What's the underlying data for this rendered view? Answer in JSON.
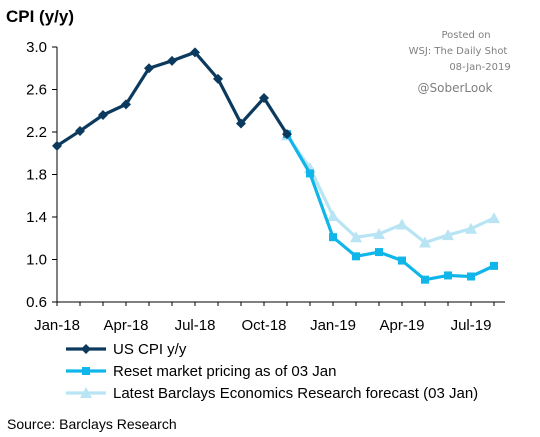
{
  "watermark": {
    "posted_on": "Posted on",
    "outlet": "WSJ: The Daily Shot",
    "date": "08-Jan-2019",
    "handle": "@SoberLook"
  },
  "source": "Source: Barclays Research",
  "colors": {
    "cpi": "#0c3a5e",
    "market": "#10b6ea",
    "forecast": "#b8e4f4"
  },
  "chart_data": {
    "type": "line",
    "title": "CPI (y/y)",
    "xlabel": "",
    "ylabel": "",
    "ylim": [
      0.6,
      3.0
    ],
    "yticks": [
      "3.0",
      "2.6",
      "2.2",
      "1.8",
      "1.4",
      "1.0",
      "0.6"
    ],
    "x_labels": [
      "Jan-18",
      "Apr-18",
      "Jul-18",
      "Oct-18",
      "Jan-19",
      "Apr-19",
      "Jul-19"
    ],
    "legend_position": "bottom",
    "x": [
      "Jan-18",
      "Feb-18",
      "Mar-18",
      "Apr-18",
      "May-18",
      "Jun-18",
      "Jul-18",
      "Aug-18",
      "Sep-18",
      "Oct-18",
      "Nov-18",
      "Dec-18",
      "Jan-19",
      "Feb-19",
      "Mar-19",
      "Apr-19",
      "May-19",
      "Jun-19",
      "Jul-19",
      "Aug-19"
    ],
    "series": [
      {
        "name": "US CPI y/y",
        "color": "#0c3a5e",
        "marker": "diamond",
        "values": [
          2.07,
          2.21,
          2.36,
          2.46,
          2.8,
          2.87,
          2.95,
          2.7,
          2.28,
          2.52,
          2.18,
          null,
          null,
          null,
          null,
          null,
          null,
          null,
          null,
          null
        ]
      },
      {
        "name": "Reset market pricing as of 03 Jan",
        "color": "#10b6ea",
        "marker": "square",
        "values": [
          null,
          null,
          null,
          null,
          null,
          null,
          null,
          null,
          null,
          null,
          2.18,
          1.81,
          1.21,
          1.03,
          1.07,
          0.99,
          0.81,
          0.85,
          0.84,
          0.94
        ]
      },
      {
        "name": "Latest Barclays Economics Research forecast (03 Jan)",
        "color": "#b8e4f4",
        "marker": "triangle",
        "values": [
          null,
          null,
          null,
          null,
          null,
          null,
          null,
          null,
          null,
          null,
          2.17,
          1.86,
          1.41,
          1.21,
          1.24,
          1.33,
          1.16,
          1.23,
          1.29,
          1.39
        ]
      }
    ]
  }
}
